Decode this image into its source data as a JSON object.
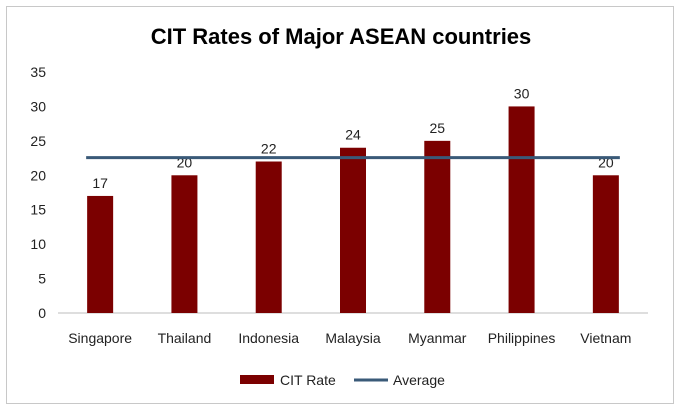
{
  "chart_data": {
    "type": "bar",
    "title": "CIT Rates of Major ASEAN countries",
    "xlabel": "",
    "ylabel": "",
    "categories": [
      "Singapore",
      "Thailand",
      "Indonesia",
      "Malaysia",
      "Myanmar",
      "Philippines",
      "Vietnam"
    ],
    "series": [
      {
        "name": "CIT Rate",
        "kind": "bar",
        "color": "#7b0000",
        "values": [
          17,
          20,
          22,
          24,
          25,
          30,
          20
        ]
      },
      {
        "name": "Average",
        "kind": "line",
        "color": "#3a5a78",
        "values": [
          22.57,
          22.57,
          22.57,
          22.57,
          22.57,
          22.57,
          22.57
        ]
      }
    ],
    "ylim": [
      0,
      35
    ],
    "yticks": [
      "0",
      "5",
      "10",
      "15",
      "20",
      "25",
      "30",
      "35"
    ],
    "data_labels": [
      "17",
      "20",
      "22",
      "24",
      "25",
      "30",
      "20"
    ],
    "grid": false,
    "legend": "bottom"
  }
}
